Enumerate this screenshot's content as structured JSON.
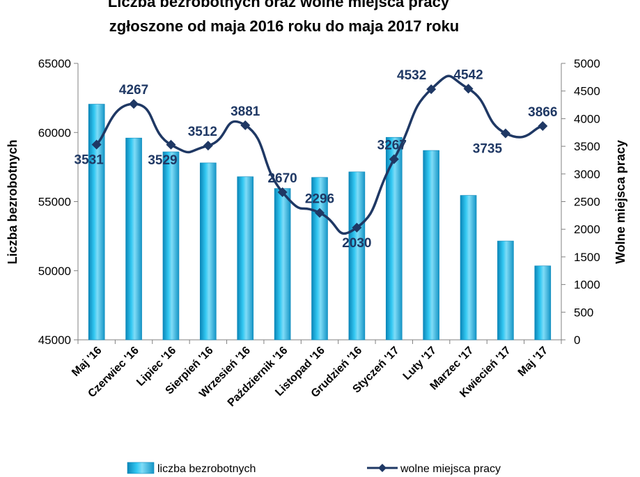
{
  "chart_data": {
    "type": "bar",
    "title_lines": [
      "Liczba bezrobotnych oraz wolne miejsca pracy",
      "zgłoszone od  maja 2016 roku do  maja 2017 roku"
    ],
    "categories": [
      "Maj '16",
      "Czerwiec '16",
      "Lipiec '16",
      "Sierpień '16",
      "Wrzesień '16",
      "Październik '16",
      "Listopad '16",
      "Grudzień '16",
      "Styczeń '17",
      "Luty '17",
      "Marzec '17",
      "Kwiecień '17",
      "Maj '17"
    ],
    "series": [
      {
        "name": "liczba bezrobotnych",
        "type": "bar",
        "axis": "left",
        "color": "#1bb5e8",
        "values": [
          62050,
          59600,
          58600,
          57800,
          56800,
          55950,
          56750,
          57150,
          59650,
          58700,
          55450,
          52150,
          50350
        ]
      },
      {
        "name": "wolne miejsca pracy",
        "type": "line",
        "axis": "right",
        "color": "#1f3864",
        "values": [
          3531,
          4267,
          3529,
          3512,
          3881,
          2670,
          2296,
          2030,
          3267,
          4532,
          4542,
          3735,
          3866
        ]
      }
    ],
    "ylabel": "Liczba bezrobotnych",
    "y2label": "Wolne  miejsca  pracy",
    "ylim": [
      45000,
      65000
    ],
    "yticks": [
      45000,
      50000,
      55000,
      60000,
      65000
    ],
    "y2lim": [
      0,
      5000
    ],
    "y2ticks": [
      0,
      500,
      1000,
      1500,
      2000,
      2500,
      3000,
      3500,
      4000,
      4500,
      5000
    ],
    "legend": "bottom"
  }
}
